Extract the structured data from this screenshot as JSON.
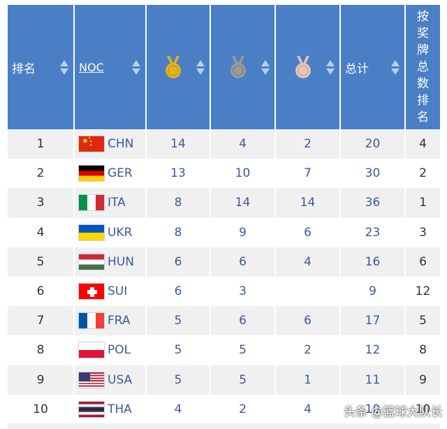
{
  "header": {
    "rank_label": "排名",
    "noc_label": "NOC",
    "total_label": "总计",
    "rank_by_total_chars": [
      "按",
      "奖",
      "牌",
      "总",
      "数",
      "排",
      "名"
    ]
  },
  "colors": {
    "header_bg": "#4a7fc5",
    "gold": "#e3b21f",
    "silver": "#9a9a9a",
    "bronze": "#e6c3b5",
    "value_text": "#3b5a9a"
  },
  "icons": {
    "gold": "gold-medal-icon",
    "silver": "silver-medal-icon",
    "bronze": "bronze-medal-icon",
    "sort": "sort-arrows-icon"
  },
  "rows": [
    {
      "rank": "1",
      "noc": "CHN",
      "gold": "14",
      "silver": "4",
      "bronze": "2",
      "total": "20",
      "rank_total": "4"
    },
    {
      "rank": "2",
      "noc": "GER",
      "gold": "13",
      "silver": "10",
      "bronze": "7",
      "total": "30",
      "rank_total": "2"
    },
    {
      "rank": "3",
      "noc": "ITA",
      "gold": "8",
      "silver": "14",
      "bronze": "14",
      "total": "36",
      "rank_total": "1"
    },
    {
      "rank": "4",
      "noc": "UKR",
      "gold": "8",
      "silver": "9",
      "bronze": "6",
      "total": "23",
      "rank_total": "3"
    },
    {
      "rank": "5",
      "noc": "HUN",
      "gold": "6",
      "silver": "6",
      "bronze": "4",
      "total": "16",
      "rank_total": "6"
    },
    {
      "rank": "6",
      "noc": "SUI",
      "gold": "6",
      "silver": "3",
      "bronze": "",
      "total": "9",
      "rank_total": "12"
    },
    {
      "rank": "7",
      "noc": "FRA",
      "gold": "5",
      "silver": "6",
      "bronze": "6",
      "total": "17",
      "rank_total": "5"
    },
    {
      "rank": "8",
      "noc": "POL",
      "gold": "5",
      "silver": "5",
      "bronze": "2",
      "total": "12",
      "rank_total": "8"
    },
    {
      "rank": "9",
      "noc": "USA",
      "gold": "5",
      "silver": "5",
      "bronze": "1",
      "total": "11",
      "rank_total": "9"
    },
    {
      "rank": "10",
      "noc": "THA",
      "gold": "4",
      "silver": "2",
      "bronze": "4",
      "total": "10",
      "rank_total": "10"
    }
  ],
  "watermark": "头条 @篮球大队长"
}
